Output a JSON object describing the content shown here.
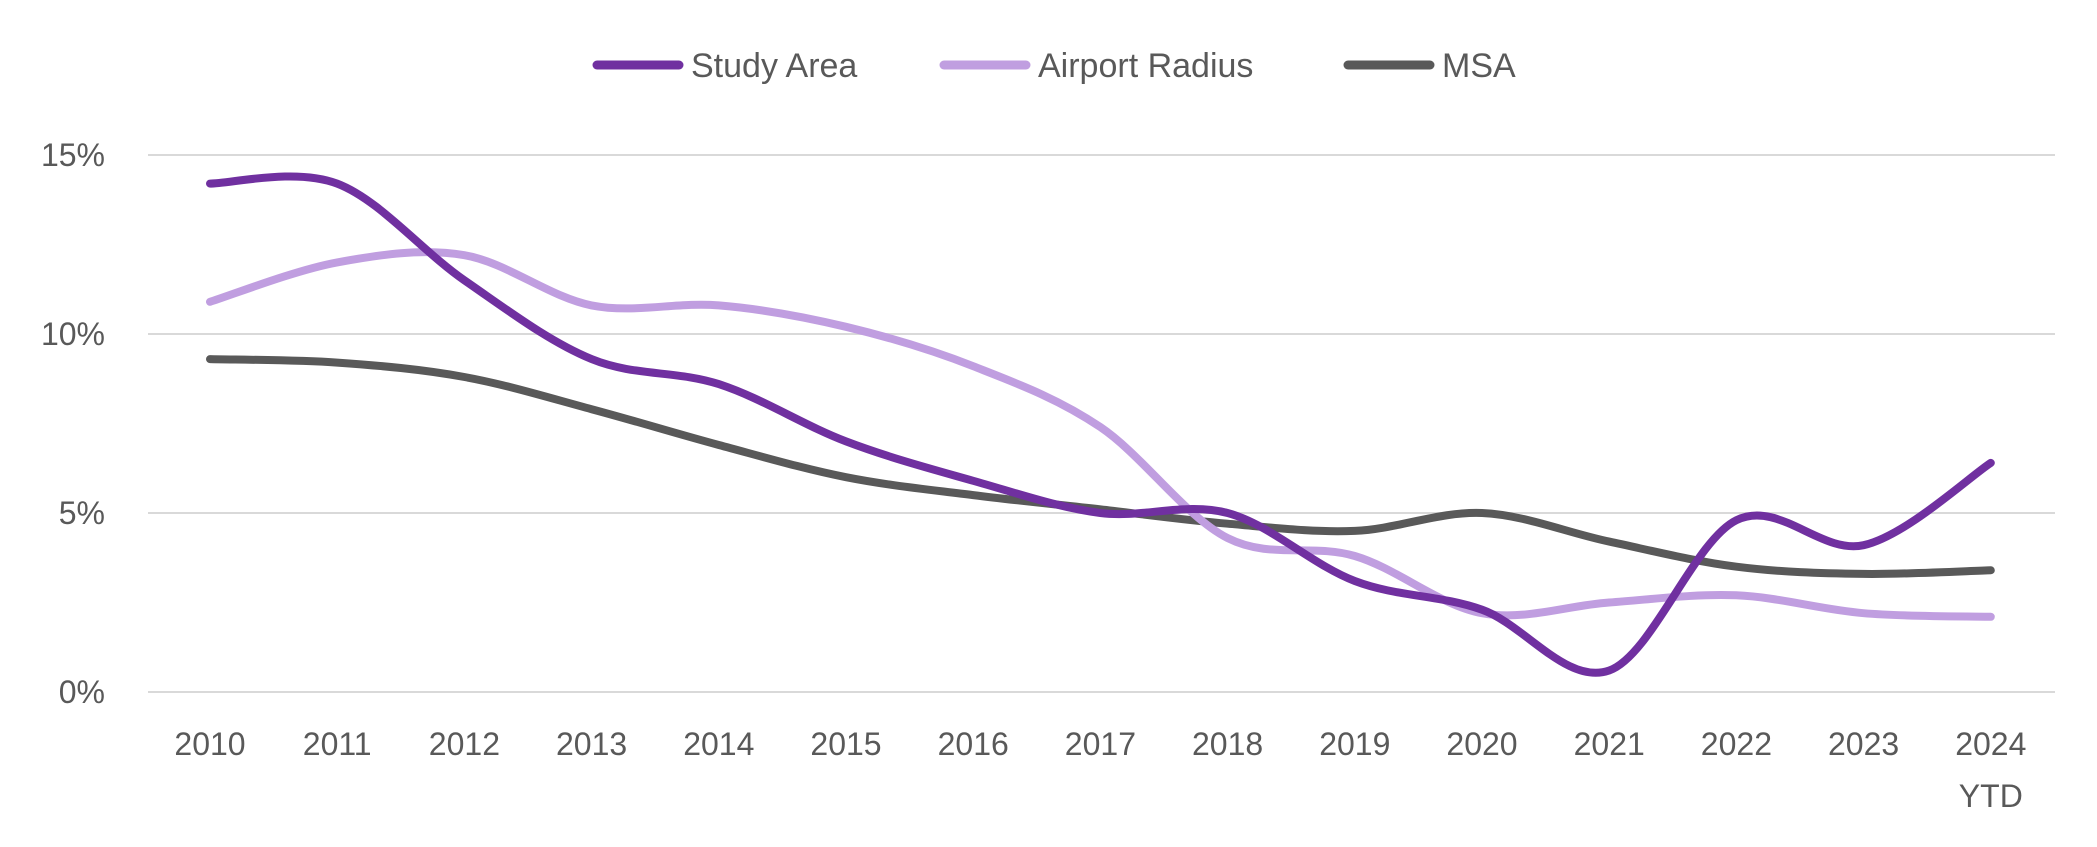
{
  "chart_data": {
    "type": "line",
    "title": "",
    "xlabel": "",
    "ylabel": "",
    "ylim": [
      0,
      15
    ],
    "grid": true,
    "legend_position": "top-center",
    "categories": [
      "2010",
      "2011",
      "2012",
      "2013",
      "2014",
      "2015",
      "2016",
      "2017",
      "2018",
      "2019",
      "2020",
      "2021",
      "2022",
      "2023",
      "2024 YTD"
    ],
    "category_lines": [
      [
        "2010"
      ],
      [
        "2011"
      ],
      [
        "2012"
      ],
      [
        "2013"
      ],
      [
        "2014"
      ],
      [
        "2015"
      ],
      [
        "2016"
      ],
      [
        "2017"
      ],
      [
        "2018"
      ],
      [
        "2019"
      ],
      [
        "2020"
      ],
      [
        "2021"
      ],
      [
        "2022"
      ],
      [
        "2023"
      ],
      [
        "2024",
        "YTD"
      ]
    ],
    "y_ticks": [
      0,
      5,
      10,
      15
    ],
    "y_tick_labels": [
      "0%",
      "5%",
      "10%",
      "15%"
    ],
    "series": [
      {
        "name": "Study Area",
        "color": "#7030A0",
        "values": [
          14.2,
          14.2,
          11.5,
          9.3,
          8.6,
          7.0,
          5.9,
          5.0,
          5.0,
          3.1,
          2.3,
          0.6,
          4.8,
          4.1,
          6.4
        ]
      },
      {
        "name": "Airport Radius",
        "color": "#C09EE0",
        "values": [
          10.9,
          12.0,
          12.2,
          10.8,
          10.8,
          10.2,
          9.1,
          7.4,
          4.3,
          3.8,
          2.2,
          2.5,
          2.7,
          2.2,
          2.1
        ]
      },
      {
        "name": "MSA",
        "color": "#595959",
        "values": [
          9.3,
          9.2,
          8.8,
          7.9,
          6.9,
          6.0,
          5.5,
          5.1,
          4.7,
          4.5,
          5.0,
          4.2,
          3.5,
          3.3,
          3.4
        ]
      }
    ]
  }
}
